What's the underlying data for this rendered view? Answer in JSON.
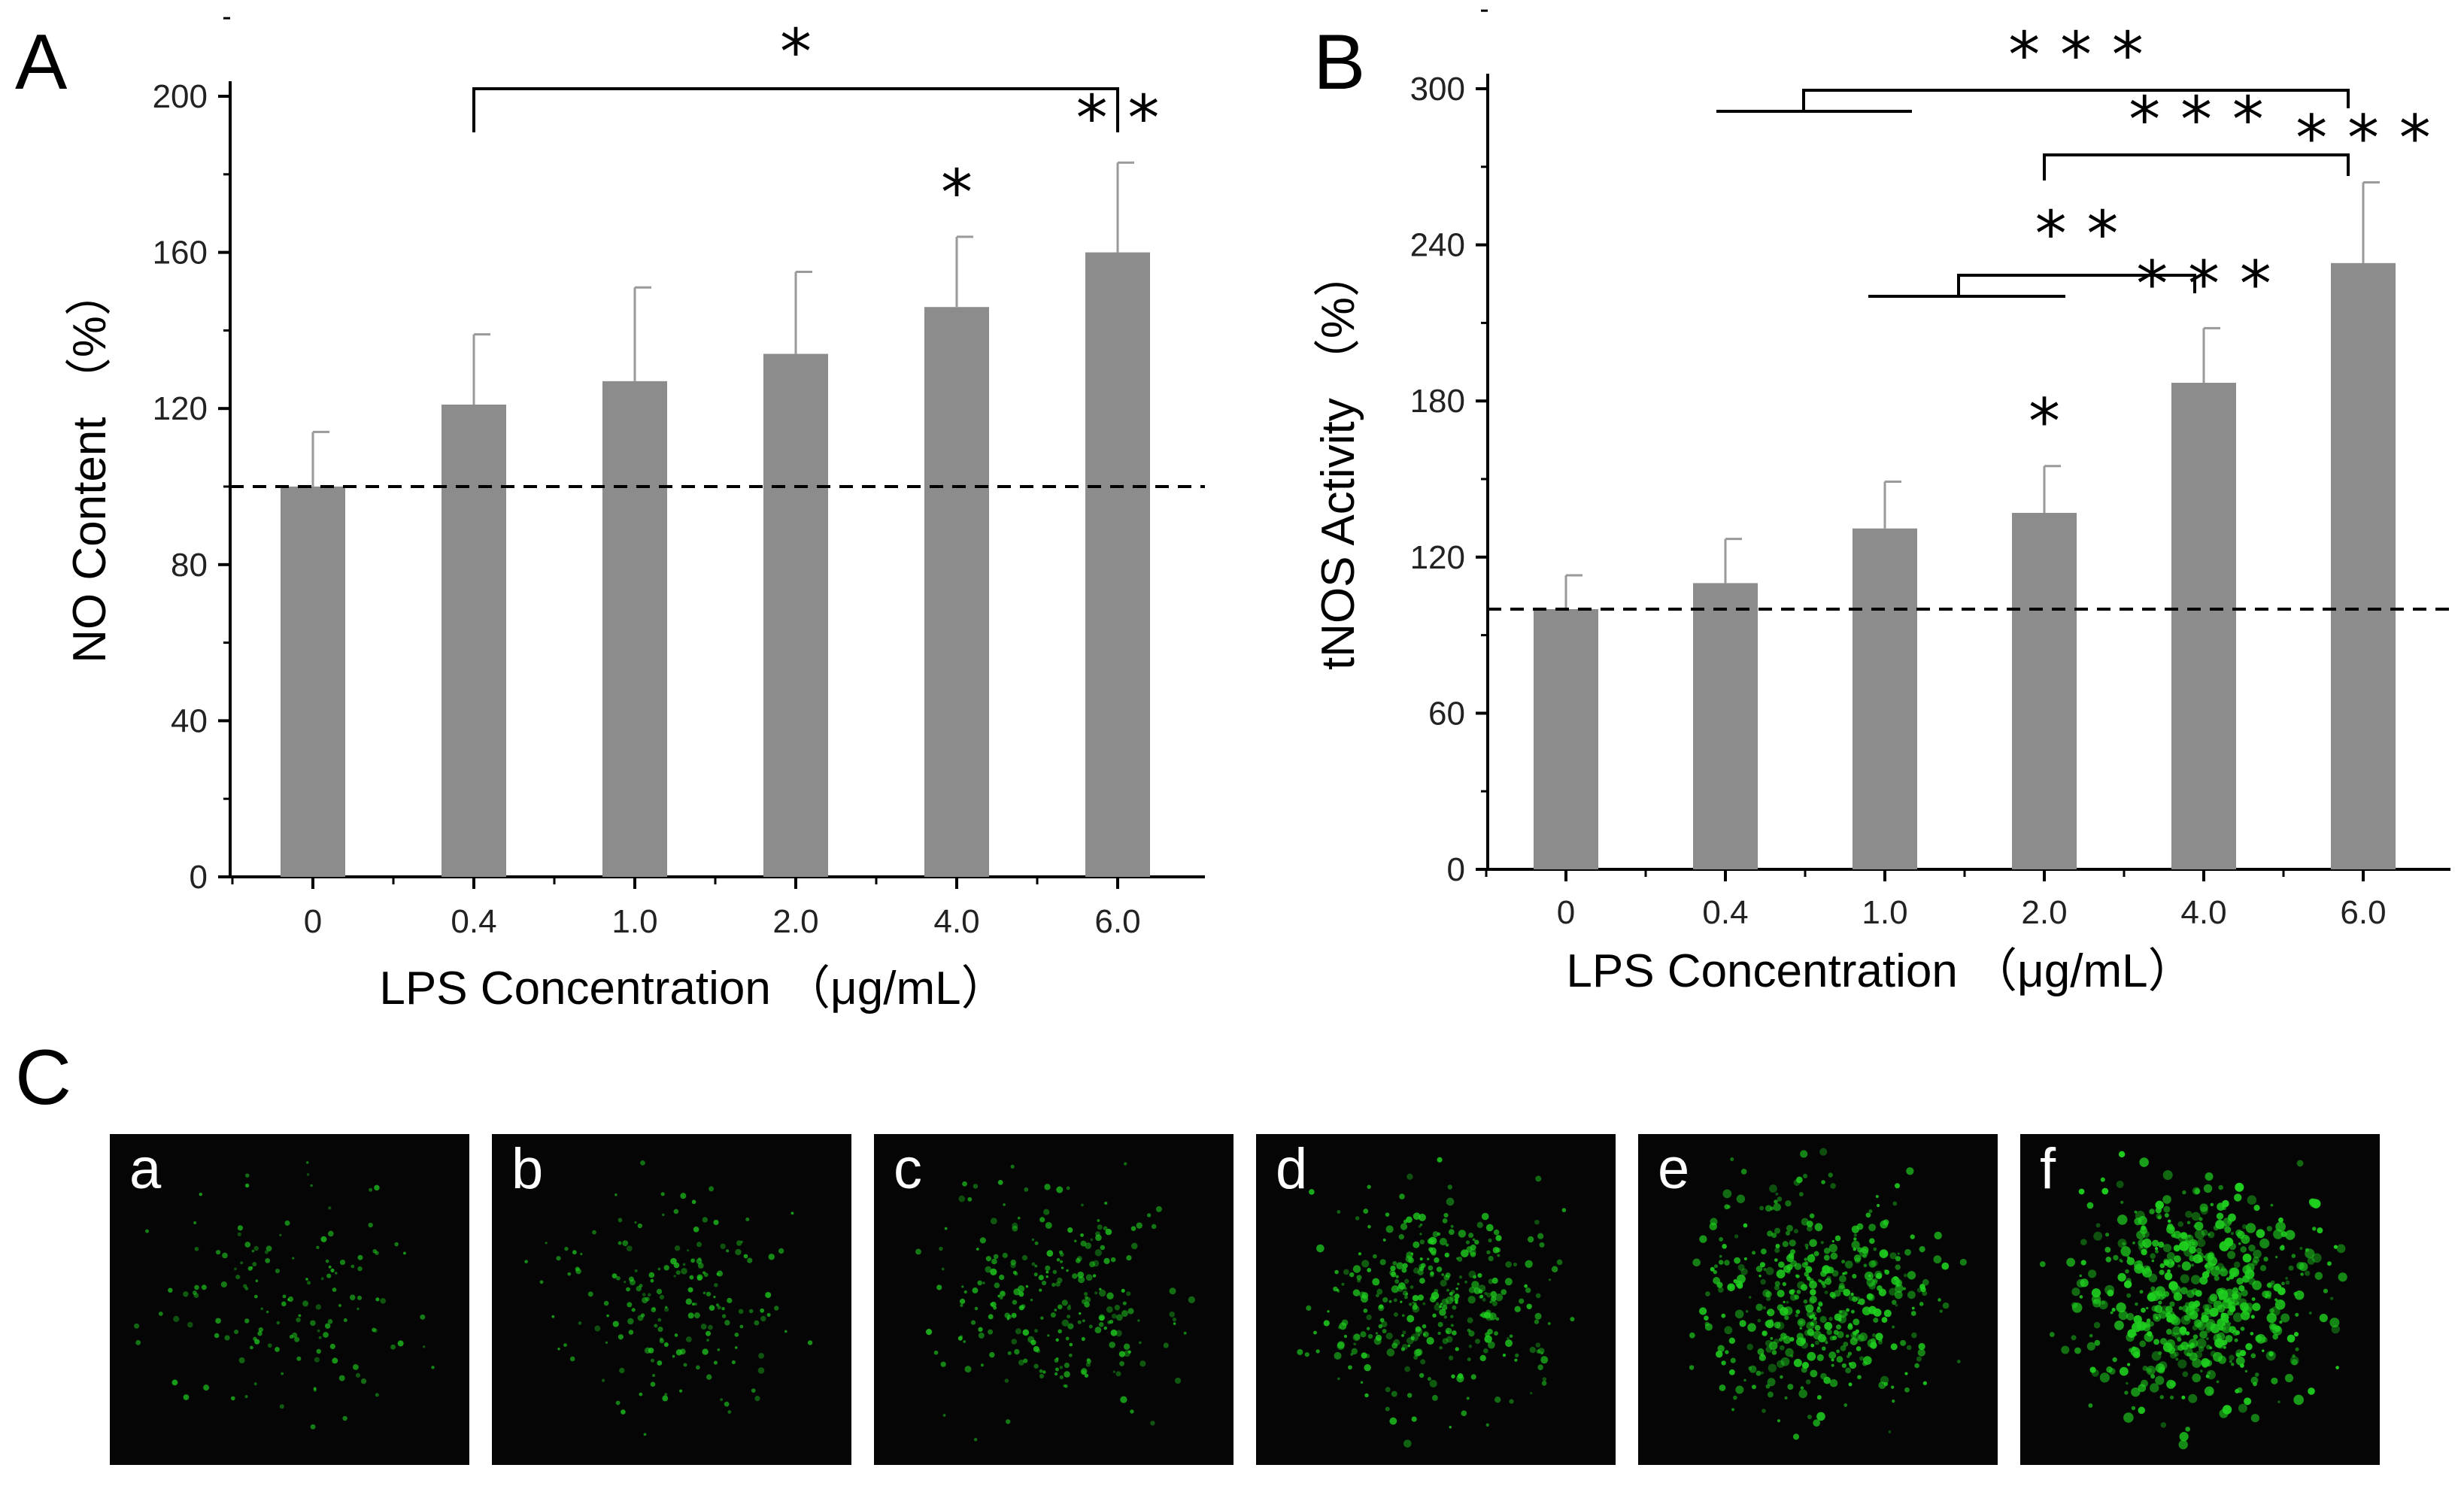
{
  "panel_labels": {
    "A": "A",
    "B": "B",
    "C": "C"
  },
  "colors": {
    "bar": "#8c8c8c",
    "error": "#9a9a9a",
    "axis": "#000000",
    "micro_bg": "#050505",
    "dot": "#1fd01f"
  },
  "chart_data": [
    {
      "id": "A",
      "type": "bar",
      "title": "",
      "xlabel": "LPS Concentration （μg/mL）",
      "ylabel": "NO Content （%）",
      "categories": [
        "0",
        "0.4",
        "1.0",
        "2.0",
        "4.0",
        "6.0"
      ],
      "values": [
        100,
        121,
        127,
        134,
        146,
        160
      ],
      "errors": [
        14,
        18,
        24,
        21,
        18,
        23
      ],
      "yticks": [
        "0",
        "40",
        "80",
        "120",
        "160",
        "200"
      ],
      "ylim": [
        0,
        200
      ],
      "reference_line": 100,
      "bar_marks": [
        "",
        "",
        "",
        "",
        "*",
        "* *"
      ],
      "brackets": [
        {
          "from": "0.4",
          "to": "6.0",
          "label": "*"
        }
      ]
    },
    {
      "id": "B",
      "type": "bar",
      "title": "",
      "xlabel": "LPS Concentration （μg/mL）",
      "ylabel": "tNOS Activity （%）",
      "categories": [
        "0",
        "0.4",
        "1.0",
        "2.0",
        "4.0",
        "6.0"
      ],
      "values": [
        100,
        110,
        131,
        137,
        187,
        233
      ],
      "errors": [
        13,
        17,
        18,
        18,
        21,
        31
      ],
      "yticks": [
        "0",
        "60",
        "120",
        "180",
        "240",
        "300"
      ],
      "ylim": [
        0,
        300
      ],
      "reference_line": 100,
      "bar_marks": [
        "",
        "",
        "",
        "*",
        "* * *",
        "* * *"
      ],
      "brackets": [
        {
          "from": "0.4–1.0",
          "to": "6.0",
          "label": "* * *"
        },
        {
          "from": "2.0",
          "to": "6.0",
          "label": "* * *"
        },
        {
          "from": "1.0–2.0",
          "to": "4.0",
          "label": "* *"
        }
      ]
    }
  ],
  "micrographs": {
    "labels": [
      "a",
      "b",
      "c",
      "d",
      "e",
      "f"
    ],
    "signal_intensity": [
      0.15,
      0.22,
      0.35,
      0.55,
      0.75,
      1.0
    ]
  }
}
